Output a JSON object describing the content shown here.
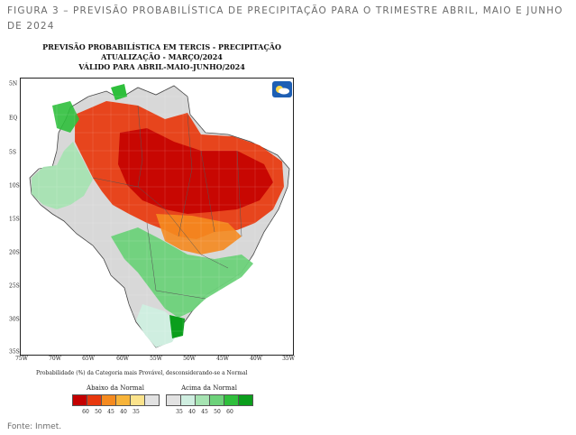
{
  "caption": "FIGURA 3 – PREVISÃO PROBABILÍSTICA DE PRECIPITAÇÃO PARA O TRIMESTRE ABRIL, MAIO E JUNHO DE 2024",
  "map_title": {
    "line1": "PREVISÃO PROBABILÍSTICA EM TERCIS - PRECIPITAÇÃO",
    "line2": "ATUALIZAÇÃO - MARÇO/2024",
    "line3": "VÁLIDO PARA ABRIL-MAIO-JUNHO/2024"
  },
  "lat_labels": [
    "5N",
    "EQ",
    "5S",
    "10S",
    "15S",
    "20S",
    "25S",
    "30S",
    "35S"
  ],
  "lon_labels": [
    "75W",
    "70W",
    "65W",
    "60W",
    "55W",
    "50W",
    "45W",
    "40W",
    "35W"
  ],
  "prob_note": "Probabilidade (%) da Categoria mais Provável, desconsiderando-se a Normal",
  "legend": {
    "below": {
      "title": "Abaixo da Normal",
      "colors": [
        "#c40000",
        "#e8380d",
        "#f58a1f",
        "#f7b43a",
        "#fbe38c",
        "#e2e2e2"
      ],
      "ticks": [
        "60",
        "50",
        "45",
        "40",
        "35"
      ]
    },
    "above": {
      "title": "Acima da Normal",
      "colors": [
        "#e2e2e2",
        "#cfeee0",
        "#a6e3b2",
        "#6dd27a",
        "#2fbf3c",
        "#0b9e1c"
      ],
      "ticks": [
        "35",
        "40",
        "45",
        "50",
        "60"
      ]
    }
  },
  "logo_icon": "inpe-cloud-logo",
  "source": "Fonte: Inmet."
}
